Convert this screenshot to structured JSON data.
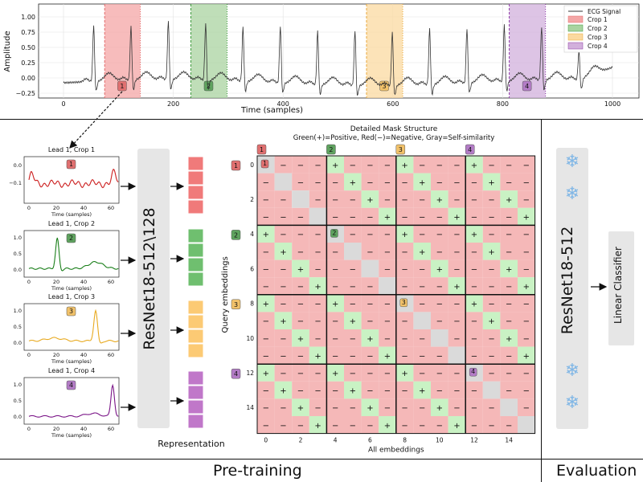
{
  "top_plot": {
    "ylabel": "Amplitude",
    "xlabel": "Time (samples)",
    "y_ticks": [
      "1.00",
      "0.75",
      "0.50",
      "0.25",
      "0.00",
      "−0.25"
    ],
    "y_tick_values": [
      1.0,
      0.75,
      0.5,
      0.25,
      0.0,
      -0.25
    ],
    "x_ticks": [
      "0",
      "200",
      "400",
      "600",
      "800",
      "1000"
    ],
    "x_tick_values": [
      0,
      200,
      400,
      600,
      800,
      1000
    ],
    "legend": [
      "ECG Signal",
      "Crop 1",
      "Crop 2",
      "Crop 3",
      "Crop 4"
    ],
    "crop_badges": [
      "1",
      "2",
      "3",
      "4"
    ]
  },
  "crop_panels": [
    {
      "title": "Lead 1, Crop 1",
      "badge": "1",
      "xlabel": "Time (samples)",
      "y_ticks": [
        "0.0",
        "−0.1"
      ],
      "x_ticks": [
        "0",
        "20",
        "40",
        "60"
      ]
    },
    {
      "title": "Lead 1, Crop 2",
      "badge": "2",
      "xlabel": "Time (samples)",
      "y_ticks": [
        "1.0",
        "0.5",
        "0.0"
      ],
      "x_ticks": [
        "0",
        "20",
        "40",
        "60"
      ]
    },
    {
      "title": "Lead 1, Crop 3",
      "badge": "3",
      "xlabel": "Time (samples)",
      "y_ticks": [
        "1.0",
        "0.5",
        "0.0"
      ],
      "x_ticks": [
        "0",
        "20",
        "40",
        "60"
      ]
    },
    {
      "title": "Lead 1, Crop 4",
      "badge": "4",
      "xlabel": "Time (samples)",
      "y_ticks": [
        "1.0",
        "0.5",
        "0.0"
      ],
      "x_ticks": [
        "0",
        "20",
        "40",
        "60"
      ]
    }
  ],
  "encoder_label": "ResNet18-512\\128",
  "representation_label": "Representation",
  "mask": {
    "title_line1": "Detailed Mask Structure",
    "title_line2": "Green(+)=Positive, Red(−)=Negative, Gray=Self-similarity",
    "xlabel": "All embeddings",
    "ylabel": "Query embeddings",
    "x_ticks": [
      "0",
      "2",
      "4",
      "6",
      "8",
      "10",
      "12",
      "14"
    ],
    "y_ticks": [
      "0",
      "2",
      "4",
      "6",
      "8",
      "10",
      "12",
      "14"
    ],
    "badges": [
      "1",
      "2",
      "3",
      "4"
    ],
    "plus": "+",
    "minus": "−"
  },
  "section_labels": {
    "pretraining": "Pre-training",
    "evaluation": "Evaluation"
  },
  "eval_encoder_label": "ResNet18-512",
  "classifier_label": "Linear Classifier",
  "frozen_icon": "❄",
  "colors": {
    "crop1": "#f4a6a6",
    "crop2": "#a9d3a0",
    "crop3": "#fbd9a0",
    "crop4": "#d2b0dc",
    "badge1": "#e07070",
    "badge2": "#5fa35f",
    "badge3": "#f2c26a",
    "badge4": "#b37cc6",
    "line1": "#cc1f1f",
    "line2": "#1a7f1a",
    "line3": "#e8aa20",
    "line4": "#7a1487",
    "pos": "#c9f2c4",
    "neg": "#f5b8b8",
    "self": "#dadada",
    "encoder": "#e6e6e6",
    "snow": "#7fb6e6"
  },
  "chart_data": [
    {
      "type": "line",
      "title": "",
      "xlabel": "Time (samples)",
      "ylabel": "Amplitude",
      "xlim": [
        0,
        1000
      ],
      "ylim": [
        -0.3,
        1.1
      ],
      "series": [
        {
          "name": "ECG Signal",
          "x": [
            0,
            60,
            150,
            200,
            260,
            320,
            350,
            400,
            460,
            520,
            560,
            600,
            650,
            720,
            780,
            820,
            880,
            940,
            1000
          ],
          "y": [
            -0.05,
            0.95,
            -0.1,
            -0.05,
            1.0,
            0.0,
            0.05,
            0.02,
            0.95,
            0.05,
            0.9,
            0.0,
            0.02,
            -0.05,
            0.95,
            -0.05,
            0.0,
            0.1,
            0.15
          ]
        }
      ],
      "regions": [
        {
          "name": "Crop 1",
          "x": [
            75,
            140
          ]
        },
        {
          "name": "Crop 2",
          "x": [
            232,
            298
          ]
        },
        {
          "name": "Crop 3",
          "x": [
            552,
            618
          ]
        },
        {
          "name": "Crop 4",
          "x": [
            812,
            878
          ]
        }
      ]
    },
    {
      "type": "line",
      "title": "Lead 1, Crop 1",
      "xlabel": "Time (samples)",
      "ylim": [
        -0.2,
        0.05
      ]
    },
    {
      "type": "line",
      "title": "Lead 1, Crop 2",
      "xlabel": "Time (samples)",
      "ylim": [
        -0.1,
        1.2
      ]
    },
    {
      "type": "line",
      "title": "Lead 1, Crop 3",
      "xlabel": "Time (samples)",
      "ylim": [
        -0.1,
        1.2
      ]
    },
    {
      "type": "line",
      "title": "Lead 1, Crop 4",
      "xlabel": "Time (samples)",
      "ylim": [
        -0.1,
        1.2
      ]
    },
    {
      "type": "heatmap",
      "title": "Detailed Mask Structure",
      "xlabel": "All embeddings",
      "ylabel": "Query embeddings",
      "size": 16,
      "rule": "self-similarity on diagonal, positive where (i mod 4)==(j mod 4) and i!=j, negative elsewhere"
    }
  ]
}
